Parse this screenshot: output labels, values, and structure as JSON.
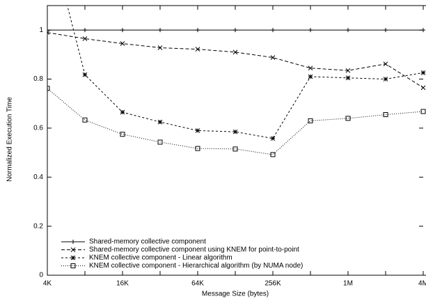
{
  "chart_data": {
    "type": "line",
    "x_label": "Message Size (bytes)",
    "y_label": "Normalized Execution Time",
    "categories": [
      "4K",
      null,
      "16K",
      null,
      "64K",
      null,
      "256K",
      null,
      "1M",
      null,
      "4M"
    ],
    "ylim": [
      0,
      1.1
    ],
    "yticks": [
      0,
      0.2,
      0.4,
      0.6,
      0.8,
      1
    ],
    "legend": "bottom-left",
    "series": [
      {
        "name": "Shared-memory collective component",
        "color": "#000000",
        "values": [
          1,
          1,
          1,
          1,
          1,
          1,
          1,
          1,
          1,
          1,
          1
        ]
      },
      {
        "name": "Shared-memory collective component using KNEM for point-to-point",
        "color": "#000000",
        "values": [
          0.99,
          0.965,
          0.945,
          0.928,
          0.922,
          0.91,
          0.888,
          0.845,
          0.835,
          0.862,
          0.765
        ]
      },
      {
        "name": "KNEM collective component - Linear algorithm",
        "color": "#000000",
        "values": [
          1.42,
          0.818,
          0.665,
          0.625,
          0.59,
          0.585,
          0.558,
          0.81,
          0.805,
          0.8,
          0.826
        ]
      },
      {
        "name": "KNEM collective component - Hierarchical algorithm (by NUMA node)",
        "color": "#000000",
        "values": [
          0.762,
          0.633,
          0.575,
          0.543,
          0.517,
          0.515,
          0.492,
          0.63,
          0.64,
          0.655,
          0.668
        ]
      }
    ]
  }
}
